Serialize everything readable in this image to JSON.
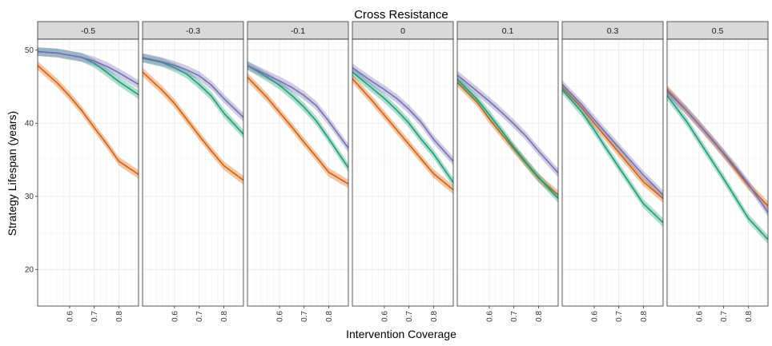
{
  "chart_data": {
    "type": "line",
    "title": "Cross Resistance",
    "xlabel": "Intervention Coverage",
    "ylabel": "Strategy Lifespan (years)",
    "facet_values": [
      "-0.5",
      "-0.3",
      "-0.1",
      "0",
      "0.1",
      "0.3",
      "0.5"
    ],
    "xlim": [
      0.47,
      0.88
    ],
    "ylim": [
      15,
      51.5
    ],
    "x_ticks": [
      0.6,
      0.7,
      0.8
    ],
    "x_tick_labels": [
      "0.6",
      "0.7",
      "0.8"
    ],
    "y_ticks": [
      20,
      30,
      40,
      50
    ],
    "y_tick_labels": [
      "20",
      "30",
      "40",
      "50"
    ],
    "grid": true,
    "legend": "none",
    "colors": {
      "orange": "#d95f02",
      "teal": "#1b9e77",
      "purple": "#7570b3",
      "strip_fill": "#d9d9d9",
      "grid": "#ebebeb"
    },
    "ribbon_halfwidth": 0.6,
    "x": [
      0.47,
      0.55,
      0.6,
      0.65,
      0.7,
      0.75,
      0.8,
      0.88
    ],
    "panels": [
      {
        "facet": "-0.5",
        "series": [
          {
            "color": "orange",
            "values": [
              47.9,
              45.5,
              43.7,
              41.7,
              39.4,
              37.2,
              34.8,
              33.0
            ]
          },
          {
            "color": "teal",
            "values": [
              49.8,
              49.6,
              49.3,
              49.0,
              48.2,
              47.0,
              45.7,
              43.9
            ]
          },
          {
            "color": "purple",
            "values": [
              49.8,
              49.6,
              49.3,
              49.0,
              48.5,
              47.8,
              46.9,
              45.3
            ]
          }
        ]
      },
      {
        "facet": "-0.3",
        "series": [
          {
            "color": "orange",
            "values": [
              47.0,
              44.5,
              42.7,
              40.5,
              38.3,
              36.2,
              34.2,
              32.2
            ]
          },
          {
            "color": "teal",
            "values": [
              48.9,
              48.3,
              47.6,
              46.7,
              45.3,
              43.7,
              41.4,
              38.5
            ]
          },
          {
            "color": "purple",
            "values": [
              49.0,
              48.4,
              47.9,
              47.3,
              46.5,
              45.2,
              43.4,
              40.8
            ]
          }
        ]
      },
      {
        "facet": "-0.1",
        "series": [
          {
            "color": "orange",
            "values": [
              46.3,
              43.5,
              41.5,
              39.5,
              37.4,
              35.4,
              33.3,
              31.7
            ]
          },
          {
            "color": "teal",
            "values": [
              47.9,
              46.3,
              45.2,
              43.8,
              42.2,
              40.3,
              37.9,
              33.9
            ]
          },
          {
            "color": "purple",
            "values": [
              47.9,
              46.6,
              45.8,
              44.9,
              43.8,
              42.4,
              40.3,
              36.6
            ]
          }
        ]
      },
      {
        "facet": "0",
        "series": [
          {
            "color": "orange",
            "values": [
              46.1,
              43.1,
              41.1,
              39.1,
              37.1,
              35.1,
              33.1,
              30.9
            ]
          },
          {
            "color": "teal",
            "values": [
              47.0,
              44.8,
              43.4,
              41.8,
              40.0,
              37.8,
              35.8,
              31.9
            ]
          },
          {
            "color": "purple",
            "values": [
              47.6,
              45.7,
              44.6,
              43.4,
              41.9,
              40.1,
              37.8,
              34.8
            ]
          }
        ]
      },
      {
        "facet": "0.1",
        "series": [
          {
            "color": "orange",
            "values": [
              45.6,
              42.9,
              40.6,
              38.5,
              36.5,
              34.5,
              32.5,
              30.2
            ]
          },
          {
            "color": "teal",
            "values": [
              46.0,
              43.3,
              41.2,
              39.0,
              36.7,
              34.6,
              32.6,
              29.7
            ]
          },
          {
            "color": "purple",
            "values": [
              46.6,
              44.4,
              43.0,
              41.5,
              39.9,
              38.2,
              36.2,
              33.2
            ]
          }
        ]
      },
      {
        "facet": "0.3",
        "series": [
          {
            "color": "orange",
            "values": [
              44.9,
              42.1,
              40.0,
              38.0,
              36.0,
              34.0,
              32.0,
              29.7
            ]
          },
          {
            "color": "teal",
            "values": [
              44.6,
              41.5,
              39.1,
              36.5,
              34.0,
              31.5,
              29.0,
              26.4
            ]
          },
          {
            "color": "purple",
            "values": [
              45.3,
              42.5,
              40.5,
              38.6,
              36.7,
              34.8,
              32.9,
              30.2
            ]
          }
        ]
      },
      {
        "facet": "0.5",
        "series": [
          {
            "color": "orange",
            "values": [
              44.6,
              41.7,
              39.8,
              37.8,
              35.8,
              33.6,
              31.5,
              28.7
            ]
          },
          {
            "color": "teal",
            "values": [
              43.8,
              40.2,
              37.6,
              35.0,
              32.4,
              29.7,
              27.0,
              24.1
            ]
          },
          {
            "color": "purple",
            "values": [
              44.4,
              41.7,
              39.8,
              37.9,
              35.9,
              33.9,
              31.7,
              27.8
            ]
          }
        ]
      }
    ]
  }
}
